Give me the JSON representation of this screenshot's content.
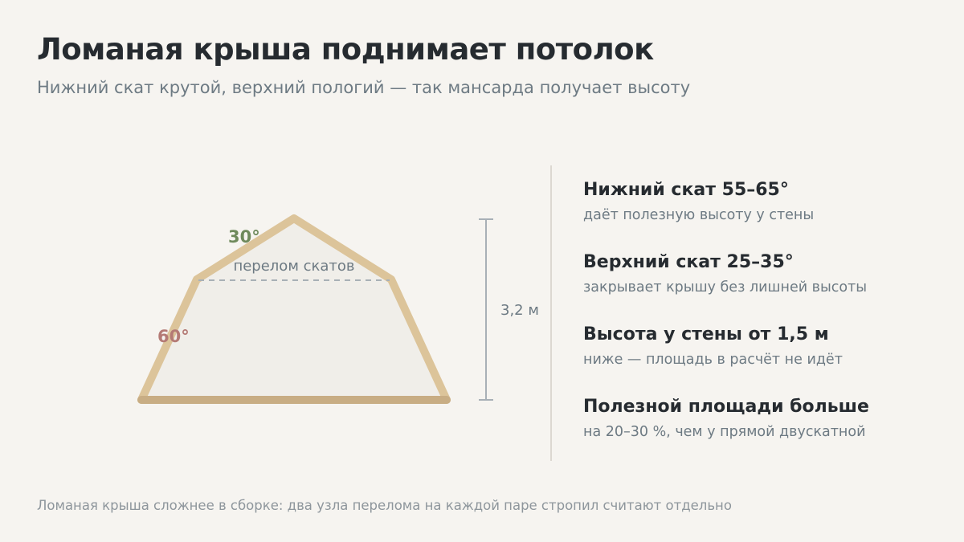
{
  "header": {
    "title": "Ломаная крыша поднимает потолок",
    "subtitle": "Нижний скат крутой, верхний пологий — так мансарда получает высоту"
  },
  "diagram": {
    "upper_angle_label": "30°",
    "lower_angle_label": "60°",
    "break_line_label": "перелом скатов",
    "height_label": "3,2 м",
    "colors": {
      "roof_stroke": "#dcc49a",
      "floor_stroke": "#c8ad84",
      "fill": "#f0eee9",
      "upper_angle": "#6f8a5c",
      "lower_angle": "#b47a75",
      "dimension": "#a8b0b6"
    }
  },
  "facts": [
    {
      "title": "Нижний скат 55–65°",
      "desc": "даёт полезную высоту у стены"
    },
    {
      "title": "Верхний скат 25–35°",
      "desc": "закрывает крышу без лишней высоты"
    },
    {
      "title": "Высота у стены от 1,5 м",
      "desc": "ниже — площадь в расчёт не идёт"
    },
    {
      "title": "Полезной площади больше",
      "desc": "на 20–30 %, чем у прямой двускатной"
    }
  ],
  "footnote": "Ломаная крыша сложнее в сборке: два узла перелома на каждой паре стропил считают отдельно"
}
